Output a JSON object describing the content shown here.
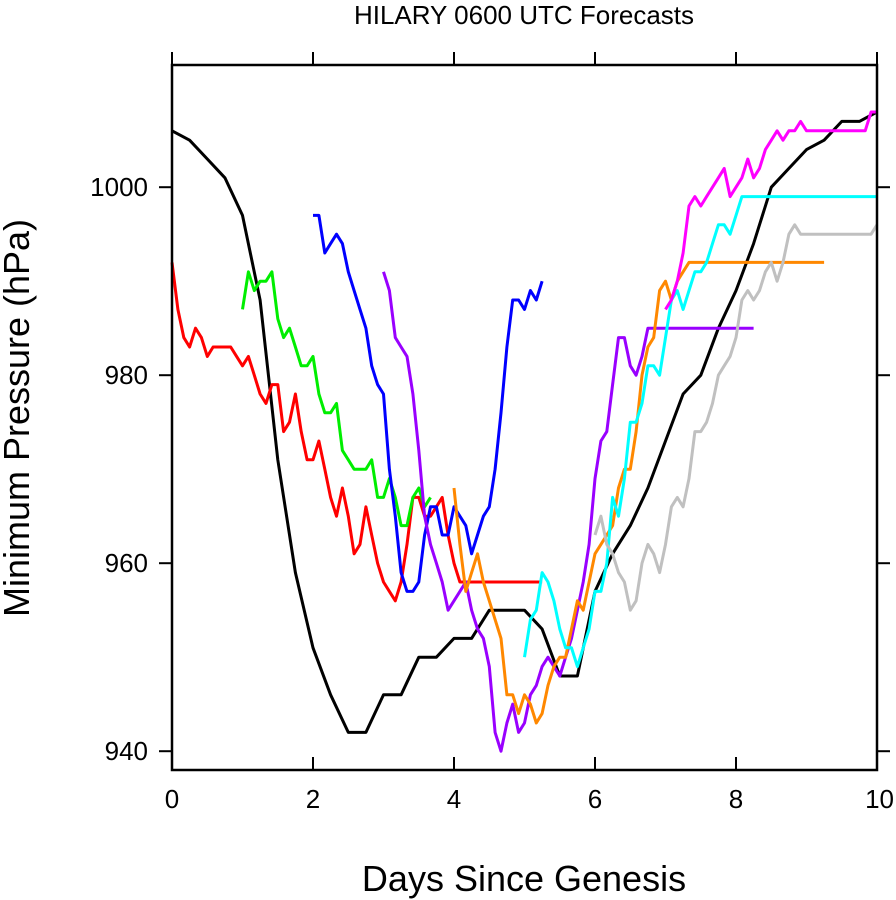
{
  "chart_data": {
    "type": "line",
    "title": "HILARY 0600 UTC Forecasts",
    "xlabel": "Days Since Genesis",
    "ylabel": "Minimum Pressure (hPa)",
    "xlim": [
      0,
      10
    ],
    "ylim": [
      938,
      1013
    ],
    "xticks": [
      0,
      2,
      4,
      6,
      8,
      10
    ],
    "xtick_labels": [
      "0",
      "2",
      "4",
      "6",
      "8",
      "10"
    ],
    "yticks": [
      940,
      960,
      980,
      1000
    ],
    "ytick_labels": [
      "940",
      "960",
      "980",
      "1000"
    ],
    "grid": false,
    "legend": "none",
    "series": [
      {
        "color": "#000000",
        "x": [
          0,
          0.25,
          0.5,
          0.75,
          1.0,
          1.25,
          1.5,
          1.75,
          2.0,
          2.25,
          2.5,
          2.75,
          3.0,
          3.25,
          3.5,
          3.75,
          4.0,
          4.25,
          4.5,
          4.75,
          5.0,
          5.25,
          5.5,
          5.75,
          6.0,
          6.25,
          6.5,
          6.75,
          7.0,
          7.25,
          7.5,
          7.75,
          8.0,
          8.25,
          8.5,
          8.75,
          9.0,
          9.25,
          9.5,
          9.75,
          10.0
        ],
        "y": [
          1006,
          1005,
          1003,
          1001,
          997,
          988,
          971,
          959,
          951,
          946,
          942,
          942,
          946,
          946,
          950,
          950,
          952,
          952,
          955,
          955,
          955,
          953,
          948,
          948,
          957,
          961,
          964,
          968,
          973,
          978,
          980,
          985,
          989,
          994,
          1000,
          1002,
          1004,
          1005,
          1007,
          1007,
          1008
        ]
      },
      {
        "color": "#ff0000",
        "x": [
          0,
          0.083,
          0.167,
          0.25,
          0.333,
          0.417,
          0.5,
          0.583,
          0.667,
          0.75,
          0.833,
          0.917,
          1.0,
          1.083,
          1.167,
          1.25,
          1.333,
          1.417,
          1.5,
          1.583,
          1.667,
          1.75,
          1.833,
          1.917,
          2.0,
          2.083,
          2.167,
          2.25,
          2.333,
          2.417,
          2.5,
          2.583,
          2.667,
          2.75,
          2.833,
          2.917,
          3.0,
          3.083,
          3.167,
          3.25,
          3.333,
          3.417,
          3.5,
          3.583,
          3.667,
          3.75,
          3.833,
          3.917,
          4.0,
          4.083,
          4.167,
          4.25,
          4.333,
          4.417,
          4.5,
          4.583,
          4.667,
          4.75,
          4.833,
          4.917,
          5.0,
          5.083,
          5.167,
          5.25
        ],
        "y": [
          992,
          987,
          984,
          983,
          985,
          984,
          982,
          983,
          983,
          983,
          983,
          982,
          981,
          982,
          980,
          978,
          977,
          979,
          979,
          974,
          975,
          978,
          974,
          971,
          971,
          973,
          970,
          967,
          965,
          968,
          965,
          961,
          962,
          966,
          963,
          960,
          958,
          957,
          956,
          958,
          962,
          967,
          967,
          965,
          965,
          966,
          967,
          963,
          960,
          958,
          958,
          958,
          958,
          958,
          958,
          958,
          958,
          958,
          958,
          958,
          958,
          958,
          958,
          958
        ]
      },
      {
        "color": "#00ee00",
        "x": [
          1.0,
          1.083,
          1.167,
          1.25,
          1.333,
          1.417,
          1.5,
          1.583,
          1.667,
          1.75,
          1.833,
          1.917,
          2.0,
          2.083,
          2.167,
          2.25,
          2.333,
          2.417,
          2.5,
          2.583,
          2.667,
          2.75,
          2.833,
          2.917,
          3.0,
          3.083,
          3.167,
          3.25,
          3.333,
          3.417,
          3.5,
          3.583,
          3.667
        ],
        "y": [
          987,
          991,
          989,
          990,
          990,
          991,
          986,
          984,
          985,
          983,
          981,
          981,
          982,
          978,
          976,
          976,
          977,
          972,
          971,
          970,
          970,
          970,
          971,
          967,
          967,
          969,
          967,
          964,
          964,
          967,
          968,
          966,
          967
        ]
      },
      {
        "color": "#0000ff",
        "x": [
          2.0,
          2.083,
          2.167,
          2.25,
          2.333,
          2.417,
          2.5,
          2.583,
          2.667,
          2.75,
          2.833,
          2.917,
          3.0,
          3.083,
          3.167,
          3.25,
          3.333,
          3.417,
          3.5,
          3.583,
          3.667,
          3.75,
          3.833,
          3.917,
          4.0,
          4.083,
          4.167,
          4.25,
          4.333,
          4.417,
          4.5,
          4.583,
          4.667,
          4.75,
          4.833,
          4.917,
          5.0,
          5.083,
          5.167,
          5.25
        ],
        "y": [
          997,
          997,
          993,
          994,
          995,
          994,
          991,
          989,
          987,
          985,
          981,
          979,
          978,
          970,
          965,
          959,
          957,
          957,
          958,
          963,
          966,
          966,
          963,
          963,
          966,
          965,
          964,
          961,
          963,
          965,
          966,
          970,
          976,
          983,
          988,
          988,
          987,
          989,
          988,
          990
        ]
      },
      {
        "color": "#9900ff",
        "x": [
          3.0,
          3.083,
          3.167,
          3.25,
          3.333,
          3.417,
          3.5,
          3.583,
          3.667,
          3.75,
          3.833,
          3.917,
          4.0,
          4.083,
          4.167,
          4.25,
          4.333,
          4.417,
          4.5,
          4.583,
          4.667,
          4.75,
          4.833,
          4.917,
          5.0,
          5.083,
          5.167,
          5.25,
          5.333,
          5.417,
          5.5,
          5.583,
          5.667,
          5.75,
          5.833,
          5.917,
          6.0,
          6.083,
          6.167,
          6.25,
          6.333,
          6.417,
          6.5,
          6.583,
          6.667,
          6.75,
          6.833,
          6.917,
          7.0,
          7.083,
          7.167,
          7.25,
          7.333,
          7.417,
          7.5,
          7.583,
          7.667,
          7.75,
          7.833,
          7.917,
          8.0,
          8.083,
          8.167,
          8.25
        ],
        "y": [
          991,
          989,
          984,
          983,
          982,
          978,
          972,
          965,
          962,
          960,
          958,
          955,
          956,
          957,
          958,
          955,
          953,
          952,
          949,
          942,
          940,
          943,
          945,
          942,
          943,
          946,
          947,
          949,
          950,
          949,
          948,
          950,
          952,
          955,
          958,
          962,
          969,
          973,
          974,
          979,
          984,
          984,
          981,
          980,
          982,
          985,
          985,
          985,
          985,
          985,
          985,
          985,
          985,
          985,
          985,
          985,
          985,
          985,
          985,
          985,
          985,
          985,
          985,
          985
        ]
      },
      {
        "color": "#ff8800",
        "x": [
          4.0,
          4.083,
          4.167,
          4.25,
          4.333,
          4.417,
          4.5,
          4.583,
          4.667,
          4.75,
          4.833,
          4.917,
          5.0,
          5.083,
          5.167,
          5.25,
          5.333,
          5.417,
          5.5,
          5.583,
          5.667,
          5.75,
          5.833,
          5.917,
          6.0,
          6.083,
          6.167,
          6.25,
          6.333,
          6.417,
          6.5,
          6.583,
          6.667,
          6.75,
          6.833,
          6.917,
          7.0,
          7.083,
          7.167,
          7.25,
          7.333,
          7.417,
          7.5,
          7.583,
          7.667,
          7.75,
          7.833,
          7.917,
          8.0,
          8.083,
          8.167,
          8.25,
          8.333,
          8.417,
          8.5,
          8.583,
          8.667,
          8.75,
          8.833,
          8.917,
          9.0,
          9.083,
          9.167,
          9.25
        ],
        "y": [
          968,
          962,
          957,
          959,
          961,
          958,
          956,
          954,
          952,
          946,
          946,
          944,
          946,
          945,
          943,
          944,
          947,
          949,
          950,
          950,
          953,
          956,
          955,
          958,
          961,
          962,
          963,
          964,
          968,
          970,
          970,
          974,
          980,
          983,
          984,
          989,
          990,
          988,
          990,
          991,
          992,
          992,
          992,
          992,
          992,
          992,
          992,
          992,
          992,
          992,
          992,
          992,
          992,
          992,
          992,
          992,
          992,
          992,
          992,
          992,
          992,
          992,
          992,
          992
        ]
      },
      {
        "color": "#00ffff",
        "x": [
          5.0,
          5.083,
          5.167,
          5.25,
          5.333,
          5.417,
          5.5,
          5.583,
          5.667,
          5.75,
          5.833,
          5.917,
          6.0,
          6.083,
          6.167,
          6.25,
          6.333,
          6.417,
          6.5,
          6.583,
          6.667,
          6.75,
          6.833,
          6.917,
          7.0,
          7.083,
          7.167,
          7.25,
          7.333,
          7.417,
          7.5,
          7.583,
          7.667,
          7.75,
          7.833,
          7.917,
          8.0,
          8.083,
          8.167,
          8.25,
          8.333,
          8.417,
          8.5,
          8.583,
          8.667,
          8.75,
          8.833,
          8.917,
          9.0,
          9.083,
          9.167,
          9.25,
          9.333,
          9.417,
          9.5,
          9.583,
          9.667,
          9.75,
          9.833,
          9.917,
          10.0
        ],
        "y": [
          950,
          954,
          955,
          959,
          958,
          956,
          953,
          951,
          951,
          949,
          951,
          953,
          957,
          957,
          960,
          967,
          965,
          969,
          975,
          975,
          977,
          981,
          981,
          980,
          984,
          988,
          989,
          987,
          989,
          991,
          991,
          992,
          994,
          996,
          996,
          995,
          997,
          999,
          999,
          999,
          999,
          999,
          999,
          999,
          999,
          999,
          999,
          999,
          999,
          999,
          999,
          999,
          999,
          999,
          999,
          999,
          999,
          999,
          999,
          999,
          999
        ]
      },
      {
        "color": "#c0c0c0",
        "x": [
          6.0,
          6.083,
          6.167,
          6.25,
          6.333,
          6.417,
          6.5,
          6.583,
          6.667,
          6.75,
          6.833,
          6.917,
          7.0,
          7.083,
          7.167,
          7.25,
          7.333,
          7.417,
          7.5,
          7.583,
          7.667,
          7.75,
          7.833,
          7.917,
          8.0,
          8.083,
          8.167,
          8.25,
          8.333,
          8.417,
          8.5,
          8.583,
          8.667,
          8.75,
          8.833,
          8.917,
          9.0,
          9.083,
          9.167,
          9.25,
          9.333,
          9.417,
          9.5,
          9.583,
          9.667,
          9.75,
          9.833,
          9.917,
          10.0
        ],
        "y": [
          963,
          965,
          962,
          961,
          959,
          958,
          955,
          956,
          960,
          962,
          961,
          959,
          962,
          966,
          967,
          966,
          969,
          974,
          974,
          975,
          977,
          980,
          981,
          982,
          984,
          988,
          989,
          988,
          989,
          991,
          992,
          990,
          992,
          995,
          996,
          995,
          995,
          995,
          995,
          995,
          995,
          995,
          995,
          995,
          995,
          995,
          995,
          995,
          996
        ]
      },
      {
        "color": "#ff00ff",
        "x": [
          7.0,
          7.083,
          7.167,
          7.25,
          7.333,
          7.417,
          7.5,
          7.583,
          7.667,
          7.75,
          7.833,
          7.917,
          8.0,
          8.083,
          8.167,
          8.25,
          8.333,
          8.417,
          8.5,
          8.583,
          8.667,
          8.75,
          8.833,
          8.917,
          9.0,
          9.083,
          9.167,
          9.25,
          9.333,
          9.417,
          9.5,
          9.583,
          9.667,
          9.75,
          9.833,
          9.917,
          10.0
        ],
        "y": [
          987,
          988,
          990,
          993,
          998,
          999,
          998,
          999,
          1000,
          1001,
          1002,
          999,
          1000,
          1001,
          1003,
          1001,
          1002,
          1004,
          1005,
          1006,
          1005,
          1006,
          1006,
          1007,
          1006,
          1006,
          1006,
          1006,
          1006,
          1006,
          1006,
          1006,
          1006,
          1006,
          1006,
          1008,
          1008
        ]
      }
    ]
  }
}
